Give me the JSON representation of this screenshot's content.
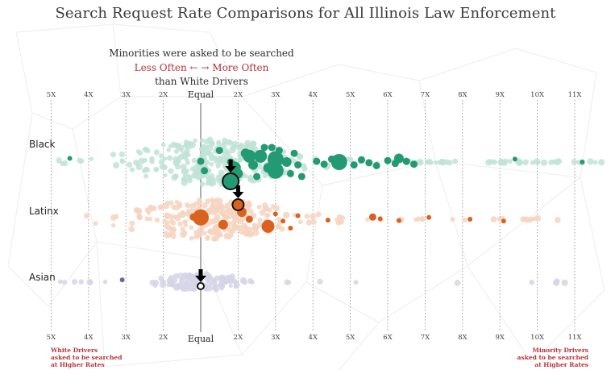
{
  "title": "Search Request Rate Comparisons for All Illinois Law Enforcement",
  "subtitle": {
    "line1": "Minorities were asked to be searched",
    "line2": "Less Often ← → More Often",
    "line3": "than White Drivers"
  },
  "notes": {
    "left": [
      "White Drivers",
      "asked to be searched",
      "at Higher Rates"
    ],
    "right": [
      "Minority Drivers",
      "asked to be searched",
      "at Higher Rates"
    ]
  },
  "colors": {
    "black_strong": "#239a73",
    "black_faint": "#bfe3d6",
    "latinx_strong": "#d9621f",
    "latinx_faint": "#f6d3bf",
    "asian_strong": "#6a68a8",
    "asian_faint": "#d6d5e8",
    "accent_red": "#b8323a",
    "equal_line": "#999999",
    "grid": "#888888"
  },
  "chart_data": {
    "type": "scatter",
    "subtype": "beeswarm",
    "title": "Search Request Rate Comparisons for All Illinois Law Enforcement",
    "xlabel": "Minorities were asked to be searched Less Often / More Often than White Drivers",
    "x_scale_note": "signed rate ratio: negative = white drivers searched N times more; positive = minority drivers searched N times more; 0 = Equal",
    "xlim": [
      -5,
      11
    ],
    "ticks": [
      {
        "value": -5,
        "label": "5X"
      },
      {
        "value": -4,
        "label": "4X"
      },
      {
        "value": -3,
        "label": "3X"
      },
      {
        "value": -2,
        "label": "2X"
      },
      {
        "value": 0,
        "label": "Equal"
      },
      {
        "value": 2,
        "label": "2X"
      },
      {
        "value": 3,
        "label": "3X"
      },
      {
        "value": 4,
        "label": "4X"
      },
      {
        "value": 5,
        "label": "5X"
      },
      {
        "value": 6,
        "label": "6X"
      },
      {
        "value": 7,
        "label": "7X"
      },
      {
        "value": 8,
        "label": "8X"
      },
      {
        "value": 9,
        "label": "9X"
      },
      {
        "value": 10,
        "label": "10X"
      },
      {
        "value": 11,
        "label": "11X"
      }
    ],
    "series": [
      {
        "name": "Black",
        "average": 1.8,
        "highlighted_agencies": [
          {
            "x": -4.5,
            "size": 1
          },
          {
            "x": -1.0,
            "size": 2
          },
          {
            "x": 1.1,
            "size": 2
          },
          {
            "x": 1.5,
            "size": 2
          },
          {
            "x": 1.8,
            "size": 2
          },
          {
            "x": 2.0,
            "size": 3
          },
          {
            "x": 2.2,
            "size": 3
          },
          {
            "x": 2.4,
            "size": 3
          },
          {
            "x": 2.5,
            "size": 2
          },
          {
            "x": 2.6,
            "size": 4
          },
          {
            "x": 2.8,
            "size": 3
          },
          {
            "x": 2.9,
            "size": 2
          },
          {
            "x": 3.0,
            "size": 5
          },
          {
            "x": 3.0,
            "size": 5
          },
          {
            "x": 3.1,
            "size": 2
          },
          {
            "x": 3.3,
            "size": 3
          },
          {
            "x": 3.4,
            "size": 2
          },
          {
            "x": 3.5,
            "size": 2
          },
          {
            "x": 3.6,
            "size": 2
          },
          {
            "x": 3.7,
            "size": 2
          },
          {
            "x": 2.3,
            "size": 4
          },
          {
            "x": 1.9,
            "size": 4
          },
          {
            "x": 2.7,
            "size": 2
          },
          {
            "x": 4.1,
            "size": 2
          },
          {
            "x": 4.3,
            "size": 2
          },
          {
            "x": 4.5,
            "size": 2
          },
          {
            "x": 4.7,
            "size": 5
          },
          {
            "x": 5.1,
            "size": 2
          },
          {
            "x": 5.3,
            "size": 2
          },
          {
            "x": 5.5,
            "size": 2
          },
          {
            "x": 5.7,
            "size": 2
          },
          {
            "x": 6.0,
            "size": 2
          },
          {
            "x": 6.2,
            "size": 2
          },
          {
            "x": 6.3,
            "size": 3
          },
          {
            "x": 6.5,
            "size": 2
          },
          {
            "x": 6.7,
            "size": 2
          },
          {
            "x": 9.4,
            "size": 1
          },
          {
            "x": 11.2,
            "size": 1
          }
        ],
        "other_agencies_range": [
          -5,
          11.8
        ]
      },
      {
        "name": "Latinx",
        "average": 2.0,
        "highlighted_agencies": [
          {
            "x": -1.2,
            "size": 2
          },
          {
            "x": 0.8,
            "size": 5
          },
          {
            "x": 1.6,
            "size": 3
          },
          {
            "x": 2.1,
            "size": 3
          },
          {
            "x": 2.3,
            "size": 2
          },
          {
            "x": 2.8,
            "size": 4
          },
          {
            "x": 3.0,
            "size": 1
          },
          {
            "x": 3.2,
            "size": 1
          },
          {
            "x": 3.4,
            "size": 1
          },
          {
            "x": 3.6,
            "size": 1
          },
          {
            "x": 4.4,
            "size": 1
          },
          {
            "x": 5.6,
            "size": 2
          },
          {
            "x": 5.8,
            "size": 1
          },
          {
            "x": 6.3,
            "size": 1
          },
          {
            "x": 7.1,
            "size": 1
          },
          {
            "x": 8.2,
            "size": 1
          },
          {
            "x": 9.1,
            "size": 1
          }
        ],
        "other_agencies_range": [
          -4.1,
          11.1
        ]
      },
      {
        "name": "Asian",
        "average": 0.3,
        "highlighted_agencies": [
          {
            "x": -3.1,
            "size": 1
          }
        ],
        "other_agencies_range": [
          -5,
          10.8
        ]
      }
    ]
  }
}
